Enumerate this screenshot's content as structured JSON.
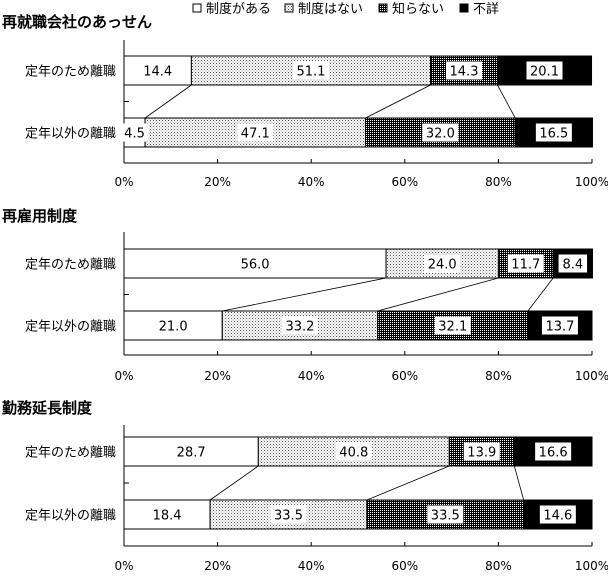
{
  "chart_data": [
    {
      "type": "bar",
      "orientation": "horizontal",
      "stacked": "percent",
      "title": "再就職会社のあっせん",
      "categories": [
        "定年のため離職",
        "定年以外の離職"
      ],
      "series": [
        {
          "name": "制度がある",
          "values": [
            14.4,
            4.5
          ]
        },
        {
          "name": "制度はない",
          "values": [
            51.1,
            47.1
          ]
        },
        {
          "name": "知らない",
          "values": [
            14.3,
            32.0
          ]
        },
        {
          "name": "不詳",
          "values": [
            20.1,
            16.5
          ]
        }
      ],
      "xlim": [
        0,
        100
      ],
      "xticks": [
        "0%",
        "20%",
        "40%",
        "60%",
        "80%",
        "100%"
      ]
    },
    {
      "type": "bar",
      "orientation": "horizontal",
      "stacked": "percent",
      "title": "再雇用制度",
      "categories": [
        "定年のため離職",
        "定年以外の離職"
      ],
      "series": [
        {
          "name": "制度がある",
          "values": [
            56.0,
            21.0
          ]
        },
        {
          "name": "制度はない",
          "values": [
            24.0,
            33.2
          ]
        },
        {
          "name": "知らない",
          "values": [
            11.7,
            32.1
          ]
        },
        {
          "name": "不詳",
          "values": [
            8.4,
            13.7
          ]
        }
      ],
      "xlim": [
        0,
        100
      ],
      "xticks": [
        "0%",
        "20%",
        "40%",
        "60%",
        "80%",
        "100%"
      ]
    },
    {
      "type": "bar",
      "orientation": "horizontal",
      "stacked": "percent",
      "title": "勤務延長制度",
      "categories": [
        "定年のため離職",
        "定年以外の離職"
      ],
      "series": [
        {
          "name": "制度がある",
          "values": [
            28.7,
            18.4
          ]
        },
        {
          "name": "制度はない",
          "values": [
            40.8,
            33.5
          ]
        },
        {
          "name": "知らない",
          "values": [
            13.9,
            33.5
          ]
        },
        {
          "name": "不詳",
          "values": [
            16.6,
            14.6
          ]
        }
      ],
      "xlim": [
        0,
        100
      ],
      "xticks": [
        "0%",
        "20%",
        "40%",
        "60%",
        "80%",
        "100%"
      ]
    }
  ],
  "legend": {
    "position": "top-right",
    "items": [
      "制度がある",
      "制度はない",
      "知らない",
      "不詳"
    ]
  }
}
